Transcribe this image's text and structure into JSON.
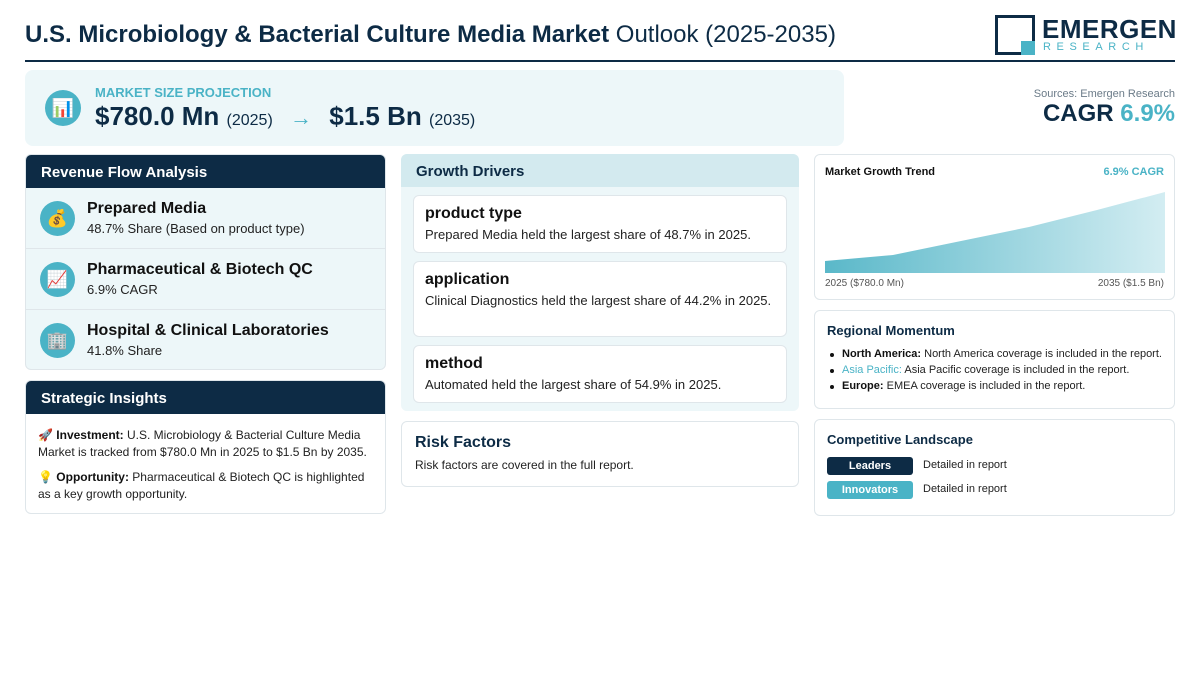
{
  "header": {
    "title_bold": "U.S. Microbiology & Bacterial Culture Media Market",
    "title_rest": " Outlook (2025-2035)",
    "logo_name": "EMERGEN",
    "logo_sub": "RESEARCH"
  },
  "projection": {
    "icon": "chart-icon",
    "label": "MARKET SIZE PROJECTION",
    "start_value": "$780.0 Mn",
    "start_year": "(2025)",
    "arrow": "→",
    "end_value": "$1.5 Bn",
    "end_year": "(2035)"
  },
  "summary": {
    "sources": "Sources: Emergen Research",
    "cagr_label": "CAGR",
    "cagr_value": "6.9%"
  },
  "revenue": {
    "title": "Revenue Flow Analysis",
    "items": [
      {
        "icon": "money-bag-icon",
        "glyph": "💰",
        "title": "Prepared Media",
        "subtitle": "48.7% Share (Based on product type)"
      },
      {
        "icon": "chart-increasing-icon",
        "glyph": "📈",
        "title": "Pharmaceutical & Biotech QC",
        "subtitle": "6.9% CAGR"
      },
      {
        "icon": "office-building-icon",
        "glyph": "🏢",
        "title": "Hospital & Clinical Laboratories",
        "subtitle": "41.8% Share"
      }
    ]
  },
  "strategic": {
    "title": "Strategic Insights",
    "investment_icon": "🚀",
    "investment_label": "Investment:",
    "investment_text": "U.S. Microbiology & Bacterial Culture Media Market is tracked from $780.0 Mn in 2025 to $1.5 Bn by 2035.",
    "opportunity_icon": "💡",
    "opportunity_label": "Opportunity:",
    "opportunity_text": "Pharmaceutical & Biotech QC is highlighted as a key growth opportunity."
  },
  "drivers": {
    "title": "Growth Drivers",
    "items": [
      {
        "title": "product type",
        "text": "Prepared Media held the largest share of 48.7% in 2025."
      },
      {
        "title": "application",
        "text": "Clinical Diagnostics held the largest share of 44.2% in 2025."
      },
      {
        "title": "method",
        "text": "Automated held the largest share of 54.9% in 2025."
      }
    ]
  },
  "risk": {
    "title": "Risk Factors",
    "text": "Risk factors are covered in the full report."
  },
  "trend": {
    "title": "Market Growth Trend",
    "cagr": "6.9% CAGR",
    "start_label": "2025 ($780.0 Mn)",
    "end_label": "2035 ($1.5 Bn)"
  },
  "regional": {
    "title": "Regional Momentum",
    "items": [
      {
        "name": "North America:",
        "text": " North America coverage is included in the report."
      },
      {
        "name": "Asia Pacific:",
        "text": " Asia Pacific coverage is included in the report."
      },
      {
        "name": "Europe:",
        "text": " EMEA coverage is included in the report."
      }
    ]
  },
  "competitive": {
    "title": "Competitive Landscape",
    "rows": [
      {
        "badge": "Leaders",
        "text": "Detailed in report"
      },
      {
        "badge": "Innovators",
        "text": "Detailed in report"
      }
    ]
  },
  "colors": {
    "navy": "#0d2b45",
    "teal": "#4ab3c6",
    "panel": "#edf7f9"
  }
}
